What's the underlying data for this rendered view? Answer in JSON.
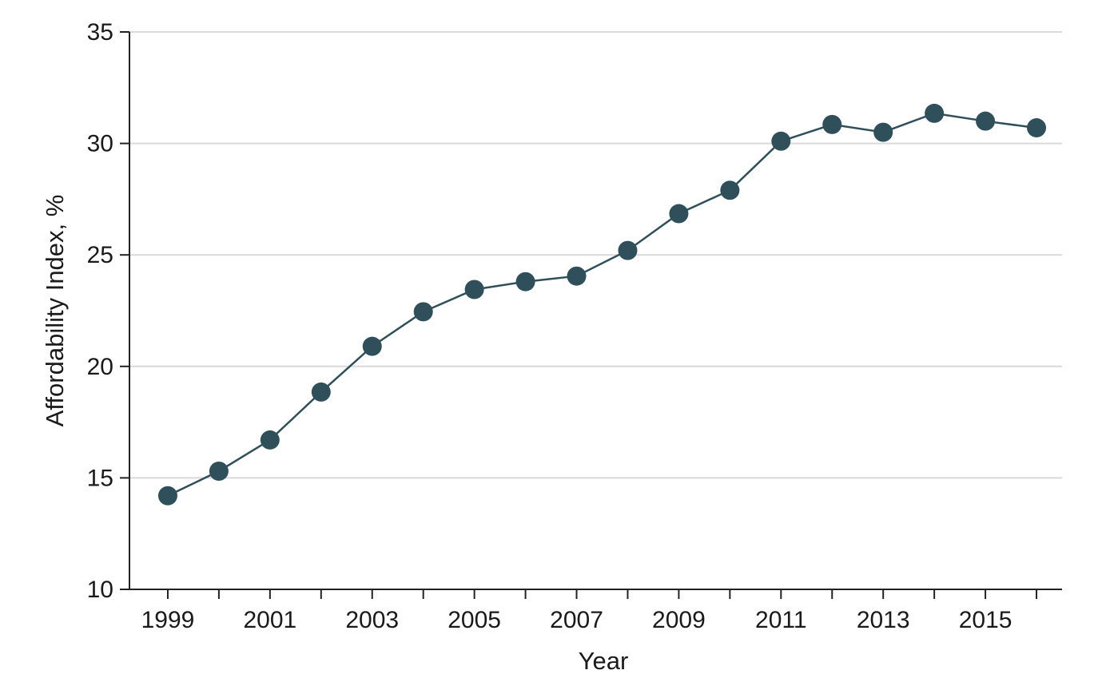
{
  "chart_data": {
    "type": "line",
    "title": "",
    "xlabel": "Year",
    "ylabel": "Affordability Index, %",
    "xlim": [
      1998.25,
      2016.5
    ],
    "ylim": [
      10,
      35
    ],
    "yticks": [
      10,
      15,
      20,
      25,
      30,
      35
    ],
    "xticks": [
      1999,
      2000,
      2001,
      2002,
      2003,
      2004,
      2005,
      2006,
      2007,
      2008,
      2009,
      2010,
      2011,
      2012,
      2013,
      2014,
      2015,
      2016
    ],
    "xtick_labels": [
      "1999",
      "2001",
      "2003",
      "2005",
      "2007",
      "2009",
      "2011",
      "2013",
      "2015"
    ],
    "xtick_label_values": [
      1999,
      2001,
      2003,
      2005,
      2007,
      2009,
      2011,
      2013,
      2015
    ],
    "grid": "horizontal",
    "legend": "none",
    "colors": {
      "series": "#2f4f5a",
      "grid": "#d9d9d9",
      "axis": "#222222"
    },
    "series": [
      {
        "x": [
          1999,
          2000,
          2001,
          2002,
          2003,
          2004,
          2005,
          2006,
          2007,
          2008,
          2009,
          2010,
          2011,
          2012,
          2013,
          2014,
          2015,
          2016
        ],
        "values": [
          14.2,
          15.3,
          16.7,
          18.85,
          20.9,
          22.45,
          23.45,
          23.8,
          24.05,
          25.2,
          26.85,
          27.9,
          30.1,
          30.85,
          30.5,
          31.35,
          31.0,
          30.7
        ]
      }
    ]
  }
}
